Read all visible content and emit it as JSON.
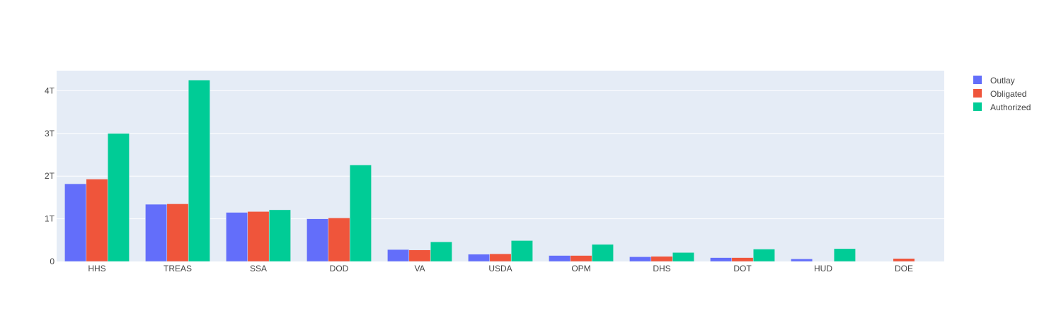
{
  "chart_data": {
    "type": "bar",
    "categories": [
      "HHS",
      "TREAS",
      "SSA",
      "DOD",
      "VA",
      "USDA",
      "OPM",
      "DHS",
      "DOT",
      "HUD",
      "DOE"
    ],
    "series": [
      {
        "name": "Outlay",
        "color": "#636efa",
        "values": [
          1.82,
          1.34,
          1.15,
          1.0,
          0.28,
          0.17,
          0.14,
          0.11,
          0.09,
          0.06,
          0.0
        ]
      },
      {
        "name": "Obligated",
        "color": "#ef553b",
        "values": [
          1.93,
          1.35,
          1.17,
          1.02,
          0.27,
          0.18,
          0.14,
          0.12,
          0.09,
          0.0,
          0.07
        ]
      },
      {
        "name": "Authorized",
        "color": "#00cc96",
        "values": [
          3.0,
          4.25,
          1.21,
          2.26,
          0.46,
          0.49,
          0.4,
          0.21,
          0.29,
          0.3,
          0.0
        ]
      }
    ],
    "unit": "T",
    "ylim": [
      0,
      4.47
    ],
    "yticks": [
      {
        "value": 0,
        "label": "0"
      },
      {
        "value": 1,
        "label": "1T"
      },
      {
        "value": 2,
        "label": "2T"
      },
      {
        "value": 3,
        "label": "3T"
      },
      {
        "value": 4,
        "label": "4T"
      }
    ],
    "grid": true,
    "legend_position": "top-right",
    "plot_background": "#e5ecf6",
    "grid_color": "#ffffff"
  }
}
